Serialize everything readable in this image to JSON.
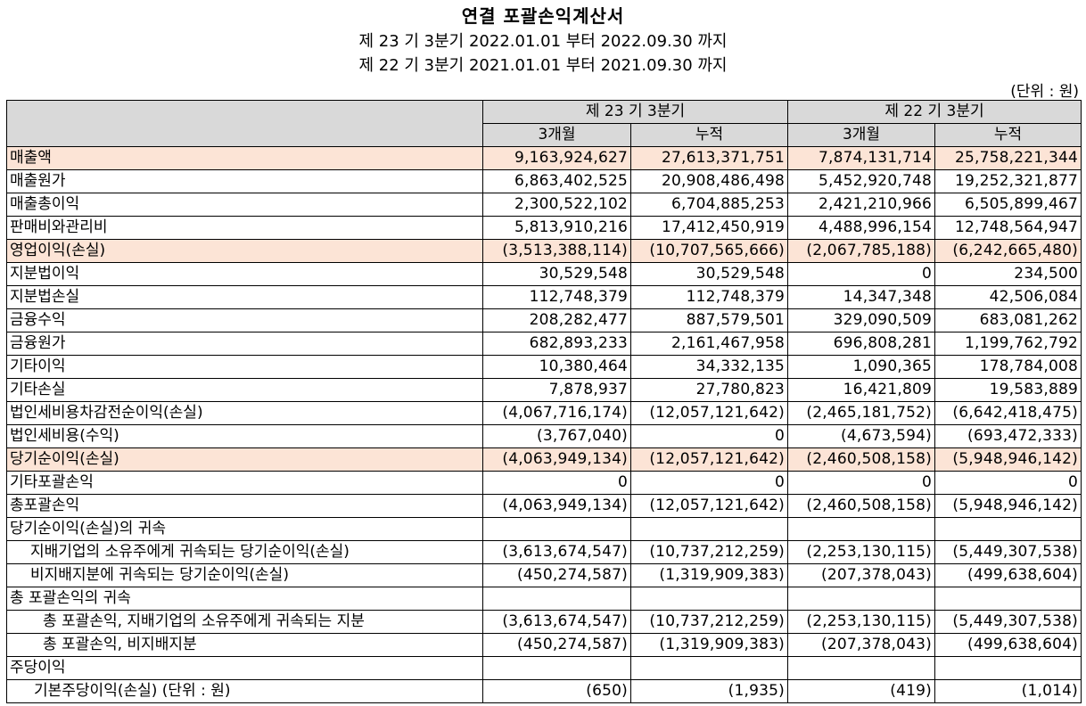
{
  "title": "연결 포괄손익계산서",
  "period_current": "제 23 기 3분기 2022.01.01 부터 2022.09.30 까지",
  "period_prior": "제 22 기 3분기 2021.01.01 부터 2021.09.30 까지",
  "unit": "(단위 : 원)",
  "header": {
    "current": "제 23 기 3분기",
    "prior": "제 22 기 3분기",
    "col_3m": "3개월",
    "col_cum": "누적"
  },
  "highlight_color": "#fce4d6",
  "rows": [
    {
      "label": "매출액",
      "v": [
        "9,163,924,627",
        "27,613,371,751",
        "7,874,131,714",
        "25,758,221,344"
      ]
    },
    {
      "label": "매출원가",
      "v": [
        "6,863,402,525",
        "20,908,486,498",
        "5,452,920,748",
        "19,252,321,877"
      ]
    },
    {
      "label": "매출총이익",
      "v": [
        "2,300,522,102",
        "6,704,885,253",
        "2,421,210,966",
        "6,505,899,467"
      ]
    },
    {
      "label": "판매비와관리비",
      "v": [
        "5,813,910,216",
        "17,412,450,919",
        "4,488,996,154",
        "12,748,564,947"
      ]
    },
    {
      "label": "영업이익(손실)",
      "v": [
        "(3,513,388,114)",
        "(10,707,565,666)",
        "(2,067,785,188)",
        "(6,242,665,480)"
      ]
    },
    {
      "label": "지분법이익",
      "v": [
        "30,529,548",
        "30,529,548",
        "0",
        "234,500"
      ]
    },
    {
      "label": "지분법손실",
      "v": [
        "112,748,379",
        "112,748,379",
        "14,347,348",
        "42,506,084"
      ]
    },
    {
      "label": "금융수익",
      "v": [
        "208,282,477",
        "887,579,501",
        "329,090,509",
        "683,081,262"
      ]
    },
    {
      "label": "금융원가",
      "v": [
        "682,893,233",
        "2,161,467,958",
        "696,808,281",
        "1,199,762,792"
      ]
    },
    {
      "label": "기타이익",
      "v": [
        "10,380,464",
        "34,332,135",
        "1,090,365",
        "178,784,008"
      ]
    },
    {
      "label": "기타손실",
      "v": [
        "7,878,937",
        "27,780,823",
        "16,421,809",
        "19,583,889"
      ]
    },
    {
      "label": "법인세비용차감전순이익(손실)",
      "v": [
        "(4,067,716,174)",
        "(12,057,121,642)",
        "(2,465,181,752)",
        "(6,642,418,475)"
      ]
    },
    {
      "label": "법인세비용(수익)",
      "v": [
        "(3,767,040)",
        "0",
        "(4,673,594)",
        "(693,472,333)"
      ]
    },
    {
      "label": "당기순이익(손실)",
      "v": [
        "(4,063,949,134)",
        "(12,057,121,642)",
        "(2,460,508,158)",
        "(5,948,946,142)"
      ]
    },
    {
      "label": "기타포괄손익",
      "v": [
        "0",
        "0",
        "0",
        "0"
      ]
    },
    {
      "label": "총포괄손익",
      "v": [
        "(4,063,949,134)",
        "(12,057,121,642)",
        "(2,460,508,158)",
        "(5,948,946,142)"
      ]
    },
    {
      "label": "당기순이익(손실)의 귀속",
      "v": [
        "",
        "",
        "",
        ""
      ]
    },
    {
      "label": "지배기업의 소유주에게 귀속되는 당기순이익(손실)",
      "v": [
        "(3,613,674,547)",
        "(10,737,212,259)",
        "(2,253,130,115)",
        "(5,449,307,538)"
      ]
    },
    {
      "label": "비지배지분에 귀속되는 당기순이익(손실)",
      "v": [
        "(450,274,587)",
        "(1,319,909,383)",
        "(207,378,043)",
        "(499,638,604)"
      ]
    },
    {
      "label": "총 포괄손익의 귀속",
      "v": [
        "",
        "",
        "",
        ""
      ]
    },
    {
      "label": "총 포괄손익, 지배기업의 소유주에게 귀속되는 지분",
      "v": [
        "(3,613,674,547)",
        "(10,737,212,259)",
        "(2,253,130,115)",
        "(5,449,307,538)"
      ]
    },
    {
      "label": "총 포괄손익, 비지배지분",
      "v": [
        "(450,274,587)",
        "(1,319,909,383)",
        "(207,378,043)",
        "(499,638,604)"
      ]
    },
    {
      "label": "주당이익",
      "v": [
        "",
        "",
        "",
        ""
      ]
    },
    {
      "label": "기본주당이익(손실) (단위 : 원)",
      "v": [
        "(650)",
        "(1,935)",
        "(419)",
        "(1,014)"
      ]
    }
  ]
}
